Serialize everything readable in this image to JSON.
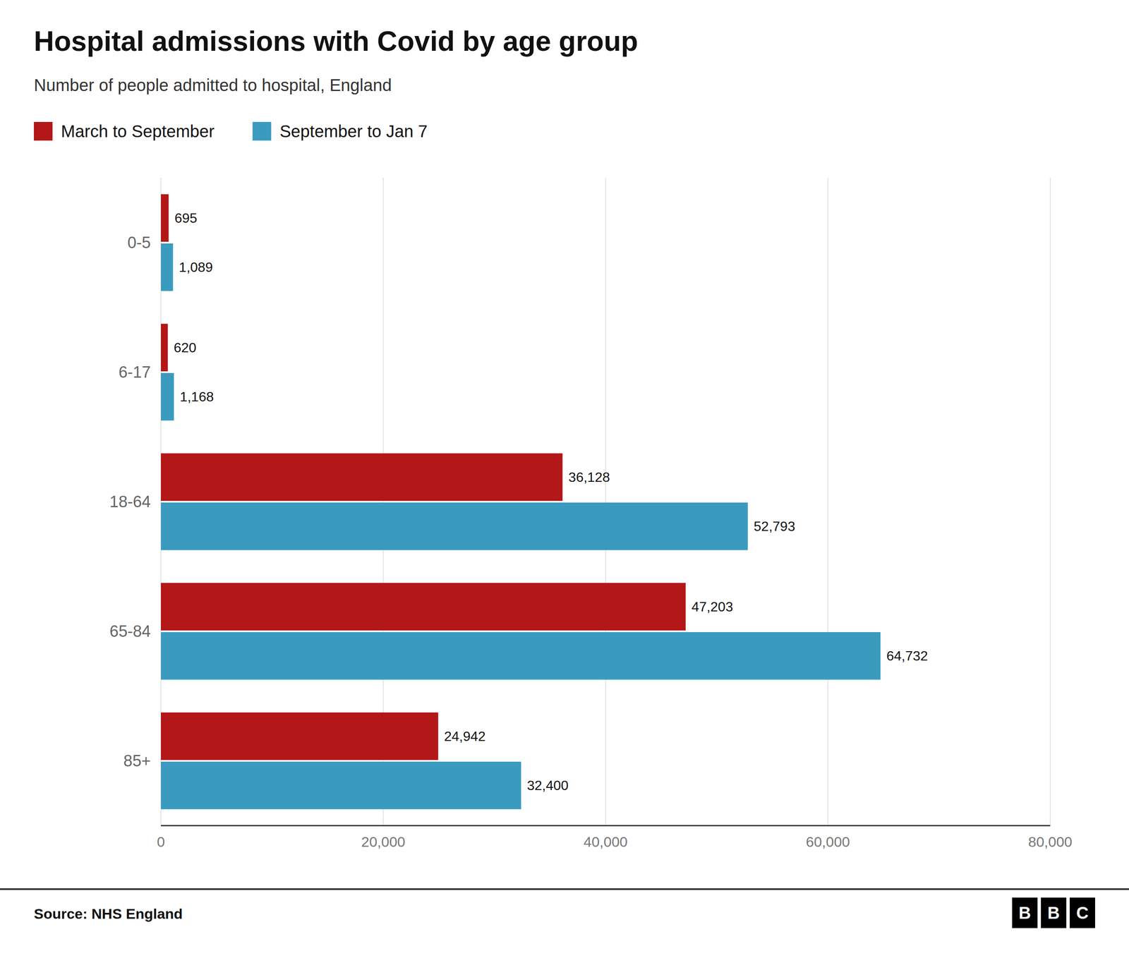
{
  "chart_data": {
    "type": "bar",
    "orientation": "horizontal",
    "title": "Hospital admissions with Covid by age group",
    "subtitle": "Number of people admitted to hospital, England",
    "source": "Source: NHS England",
    "logo": [
      "B",
      "B",
      "C"
    ],
    "categories": [
      "0-5",
      "6-17",
      "18-64",
      "65-84",
      "85+"
    ],
    "series": [
      {
        "name": "March to September",
        "color": "#b31717",
        "values": [
          695,
          620,
          36128,
          47203,
          24942
        ],
        "value_labels": [
          "695",
          "620",
          "36,128",
          "47,203",
          "24,942"
        ]
      },
      {
        "name": "September to Jan 7",
        "color": "#3a9bbf",
        "values": [
          1089,
          1168,
          52793,
          64732,
          32400
        ],
        "value_labels": [
          "1,089",
          "1,168",
          "52,793",
          "64,732",
          "32,400"
        ]
      }
    ],
    "xlim": [
      0,
      80000
    ],
    "xticks": [
      0,
      {
        "value": 20000,
        "label": "20,000"
      },
      {
        "value": 40000,
        "label": "40,000"
      },
      {
        "value": 60000,
        "label": "60,000"
      },
      {
        "value": 80000,
        "label": "80,000"
      }
    ],
    "grid": true,
    "legend": "top-left",
    "data_labels": true
  }
}
